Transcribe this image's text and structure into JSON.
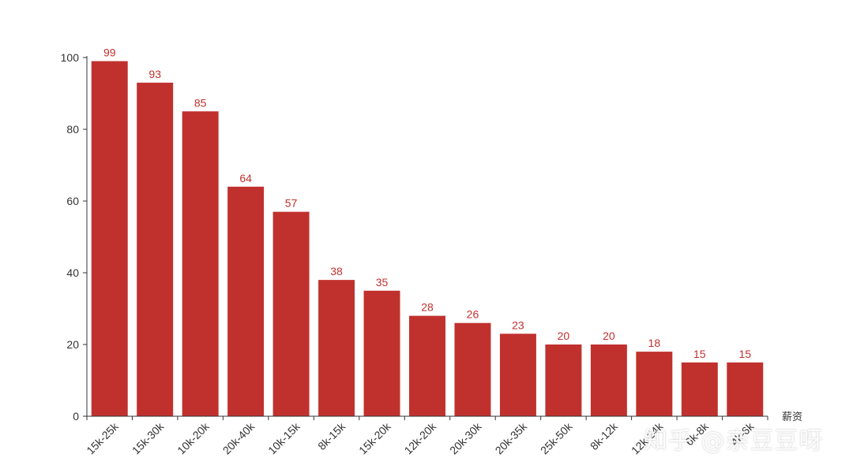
{
  "chart_data": {
    "type": "bar",
    "title": "",
    "xlabel": "薪资",
    "ylabel": "",
    "categories": [
      "15k-25k",
      "15k-30k",
      "10k-20k",
      "20k-40k",
      "10k-15k",
      "8k-15k",
      "15k-20k",
      "12k-20k",
      "20k-30k",
      "20k-35k",
      "25k-50k",
      "8k-12k",
      "12k-24k",
      "6k-8k",
      "4k-6k"
    ],
    "values": [
      99,
      93,
      85,
      64,
      57,
      38,
      35,
      28,
      26,
      23,
      20,
      20,
      18,
      15,
      15
    ],
    "ylim": [
      0,
      100
    ],
    "yticks": [
      0,
      20,
      40,
      60,
      80,
      100
    ],
    "grid": false,
    "bar_color": "#c0312e",
    "label_color": "#c0312e"
  },
  "watermark": "知乎 @亲豆豆呀"
}
